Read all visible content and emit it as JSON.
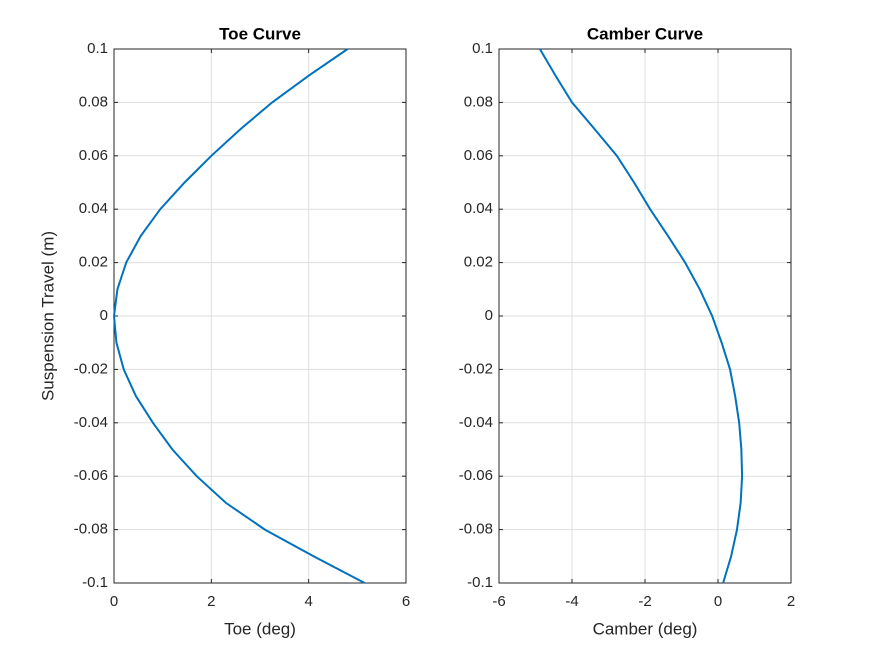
{
  "chart_data": [
    {
      "type": "line",
      "title": "Toe Curve",
      "xlabel": "Toe (deg)",
      "ylabel": "Suspension Travel (m)",
      "xlim": [
        0,
        6
      ],
      "xticks": [
        0,
        2,
        4,
        6
      ],
      "ylim": [
        -0.1,
        0.1
      ],
      "yticks": [
        -0.1,
        -0.08,
        -0.06,
        -0.04,
        -0.02,
        0,
        0.02,
        0.04,
        0.06,
        0.08,
        0.1
      ],
      "grid": true,
      "color": "#0072bd",
      "x": [
        4.8,
        4.0,
        3.25,
        2.6,
        2.0,
        1.45,
        0.95,
        0.55,
        0.25,
        0.07,
        0.0,
        0.05,
        0.2,
        0.45,
        0.8,
        1.2,
        1.7,
        2.3,
        3.1,
        4.1,
        5.15
      ],
      "y": [
        0.1,
        0.09,
        0.08,
        0.07,
        0.06,
        0.05,
        0.04,
        0.03,
        0.02,
        0.01,
        0,
        -0.01,
        -0.02,
        -0.03,
        -0.04,
        -0.05,
        -0.06,
        -0.07,
        -0.08,
        -0.09,
        -0.1
      ]
    },
    {
      "type": "line",
      "title": "Camber Curve",
      "xlabel": "Camber (deg)",
      "xlim": [
        -6,
        2
      ],
      "xticks": [
        -6,
        -4,
        -2,
        0,
        2
      ],
      "ylim": [
        -0.1,
        0.1
      ],
      "yticks": [
        -0.1,
        -0.08,
        -0.06,
        -0.04,
        -0.02,
        0,
        0.02,
        0.04,
        0.06,
        0.08,
        0.1
      ],
      "grid": true,
      "color": "#0072bd",
      "x": [
        -4.88,
        -4.45,
        -4.0,
        -3.38,
        -2.77,
        -2.3,
        -1.86,
        -1.37,
        -0.9,
        -0.5,
        -0.16,
        0.1,
        0.33,
        0.47,
        0.58,
        0.64,
        0.66,
        0.62,
        0.52,
        0.36,
        0.14
      ],
      "y": [
        0.1,
        0.09,
        0.08,
        0.07,
        0.06,
        0.05,
        0.04,
        0.03,
        0.02,
        0.01,
        0,
        -0.01,
        -0.02,
        -0.03,
        -0.04,
        -0.05,
        -0.06,
        -0.07,
        -0.08,
        -0.09,
        -0.1
      ]
    }
  ]
}
